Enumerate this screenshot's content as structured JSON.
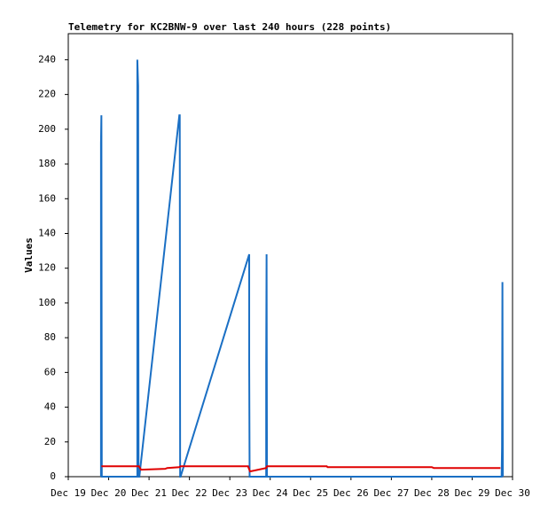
{
  "chart_data": {
    "type": "line",
    "title": "Telemetry for KC2BNW-9 over last 240 hours (228 points)",
    "y_label": "Values",
    "xlim": [
      19,
      30
    ],
    "ylim": [
      0,
      255
    ],
    "xticks": [
      {
        "value": 19,
        "label": "Dec 19"
      },
      {
        "value": 20,
        "label": "Dec 20"
      },
      {
        "value": 21,
        "label": "Dec 21"
      },
      {
        "value": 22,
        "label": "Dec 22"
      },
      {
        "value": 23,
        "label": "Dec 23"
      },
      {
        "value": 24,
        "label": "Dec 24"
      },
      {
        "value": 25,
        "label": "Dec 25"
      },
      {
        "value": 26,
        "label": "Dec 26"
      },
      {
        "value": 27,
        "label": "Dec 27"
      },
      {
        "value": 28,
        "label": "Dec 28"
      },
      {
        "value": 29,
        "label": "Dec 29"
      },
      {
        "value": 30,
        "label": "Dec 30"
      }
    ],
    "yticks": [
      0,
      20,
      40,
      60,
      80,
      100,
      120,
      140,
      160,
      180,
      200,
      220,
      240
    ],
    "series": [
      {
        "color": "#1a6fc4",
        "x": [
          19.81,
          19.81,
          19.82,
          19.83,
          20.71,
          20.71,
          20.73,
          20.74,
          20.76,
          21.75,
          21.76,
          21.77,
          21.78,
          23.48,
          23.48,
          23.49,
          23.9,
          23.9,
          23.91,
          23.92,
          29.73,
          29.74,
          29.75,
          29.76
        ],
        "values": [
          0,
          192,
          208,
          0,
          0,
          240,
          225,
          0,
          0,
          208,
          208,
          0,
          0,
          128,
          65,
          0,
          0,
          65,
          128,
          0,
          0,
          17,
          112,
          0
        ]
      },
      {
        "color": "#e00000",
        "x": [
          19.82,
          20.75,
          20.8,
          21.4,
          21.45,
          21.75,
          21.78,
          23.45,
          23.5,
          23.9,
          23.92,
          25.4,
          25.42,
          28.0,
          28.05,
          29.7
        ],
        "values": [
          6,
          6,
          4,
          4.5,
          5,
          5.5,
          6,
          6,
          3,
          5,
          6,
          6,
          5.5,
          5.5,
          5,
          5
        ]
      }
    ]
  }
}
